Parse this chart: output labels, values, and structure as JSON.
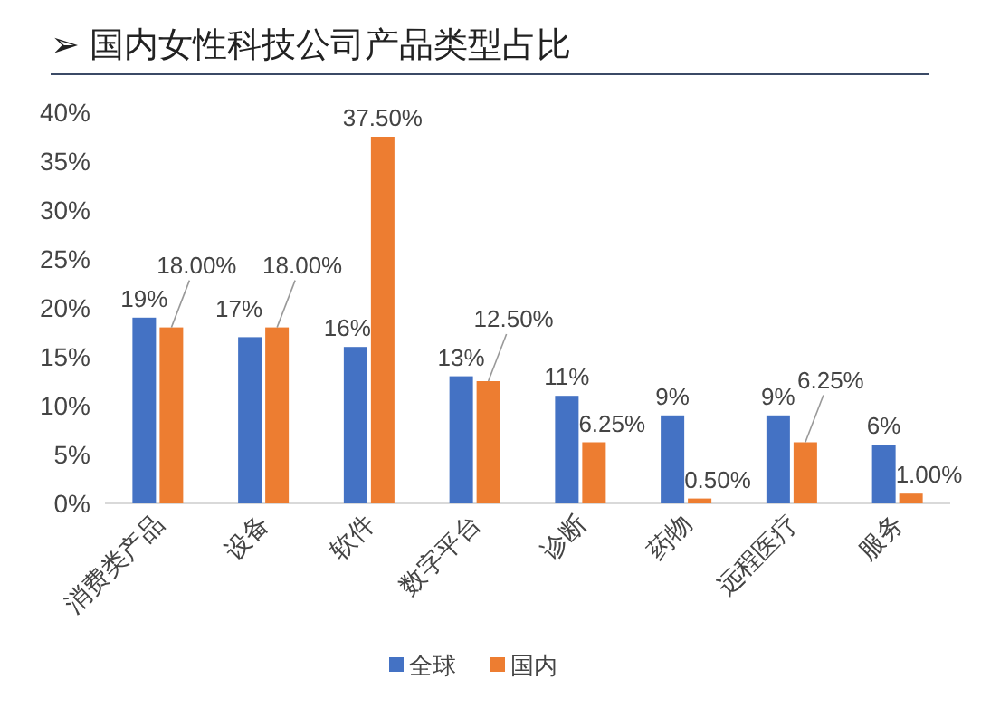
{
  "chart_data": {
    "type": "bar",
    "title": "➢ 国内女性科技公司产品类型占比",
    "categories": [
      "消费类产品",
      "设备",
      "软件",
      "数字平台",
      "诊断",
      "药物",
      "远程医疗",
      "服务"
    ],
    "series": [
      {
        "name": "全球",
        "color": "#4472c4",
        "values": [
          19,
          17,
          16,
          13,
          11,
          9,
          9,
          6
        ],
        "value_labels": [
          "19%",
          "17%",
          "16%",
          "13%",
          "11%",
          "9%",
          "9%",
          "6%"
        ]
      },
      {
        "name": "国内",
        "color": "#ed7d31",
        "values": [
          18,
          18,
          37.5,
          12.5,
          6.25,
          0.5,
          6.25,
          1
        ],
        "value_labels": [
          "18.00%",
          "18.00%",
          "37.50%",
          "12.50%",
          "6.25%",
          "0.50%",
          "6.25%",
          "1.00%"
        ]
      }
    ],
    "ylim": [
      0,
      40
    ],
    "yticks": [
      {
        "value": 0,
        "label": "0%"
      },
      {
        "value": 5,
        "label": "5%"
      },
      {
        "value": 10,
        "label": "10%"
      },
      {
        "value": 15,
        "label": "15%"
      },
      {
        "value": 20,
        "label": "20%"
      },
      {
        "value": 25,
        "label": "25%"
      },
      {
        "value": 30,
        "label": "30%"
      },
      {
        "value": 35,
        "label": "35%"
      },
      {
        "value": 40,
        "label": "40%"
      }
    ],
    "legend": "bottom"
  }
}
